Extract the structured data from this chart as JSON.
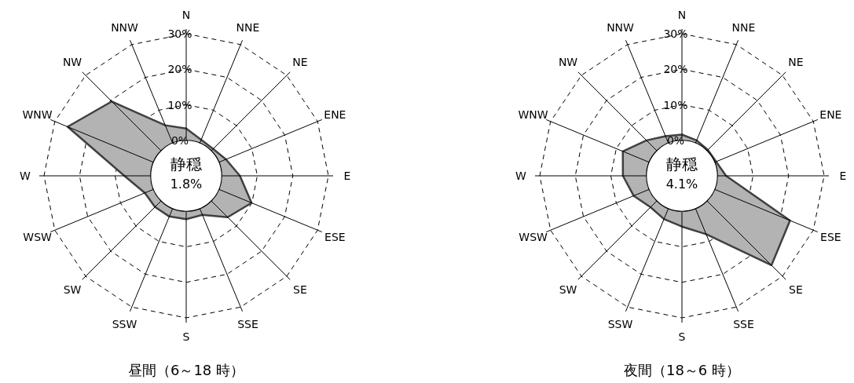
{
  "chart_data": [
    {
      "type": "radar",
      "title": "昼間（6～18 時）",
      "categories": [
        "N",
        "NNE",
        "NE",
        "ENE",
        "E",
        "ESE",
        "SE",
        "SSE",
        "S",
        "SSW",
        "SW",
        "WSW",
        "W",
        "WNW",
        "NW",
        "NNW"
      ],
      "series": [
        {
          "color": "#b3b3b3",
          "values": [
            3.3,
            1.0,
            0.7,
            2.1,
            5.1,
            9.9,
            6.5,
            1.9,
            2.2,
            2.4,
            2.4,
            2.6,
            7.4,
            26.1,
            19.6,
            5.4
          ]
        }
      ],
      "ylim": [
        -10,
        30
      ],
      "yticks": [
        {
          "value": 0,
          "label": "0%"
        },
        {
          "value": 10,
          "label": "10%"
        },
        {
          "value": 20,
          "label": "20%"
        },
        {
          "value": 30,
          "label": "30%"
        }
      ],
      "grid": true,
      "annotations": [
        "静穏",
        "1.8%"
      ]
    },
    {
      "type": "radar",
      "title": "夜間（18～6 時）",
      "categories": [
        "N",
        "NNE",
        "NE",
        "ENE",
        "E",
        "ESE",
        "SE",
        "SSE",
        "S",
        "SSW",
        "SW",
        "WSW",
        "W",
        "WNW",
        "NW",
        "NNW"
      ],
      "series": [
        {
          "color": "#b3b3b3",
          "values": [
            1.6,
            0.8,
            0.3,
            0.4,
            2.4,
            22.9,
            25.6,
            7.8,
            4.3,
            3.2,
            2.5,
            4.7,
            6.6,
            8.0,
            4.1,
            2.1
          ]
        }
      ],
      "ylim": [
        -10,
        30
      ],
      "yticks": [
        {
          "value": 0,
          "label": "0%"
        },
        {
          "value": 10,
          "label": "10%"
        },
        {
          "value": 20,
          "label": "20%"
        },
        {
          "value": 30,
          "label": "30%"
        }
      ],
      "grid": true,
      "annotations": [
        "静穏",
        "4.1%"
      ]
    }
  ]
}
